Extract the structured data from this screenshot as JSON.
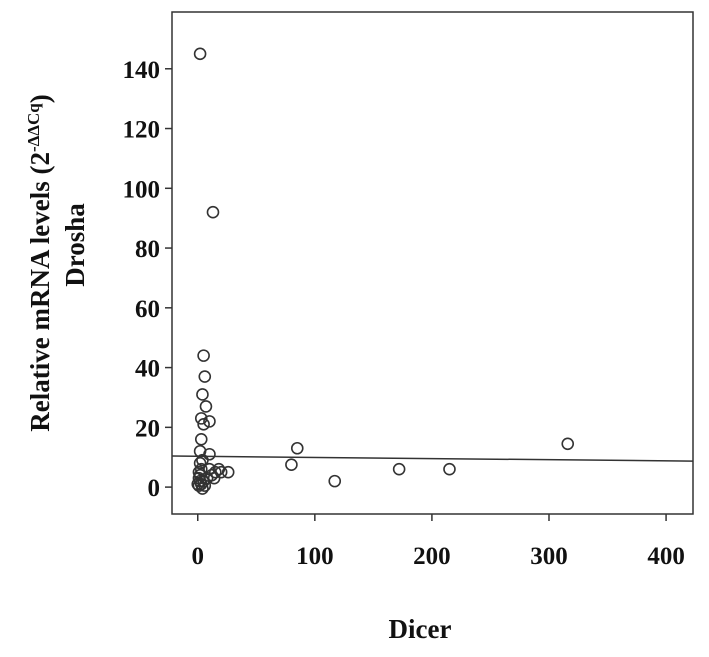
{
  "chart_data": {
    "type": "scatter",
    "x_label": "Dicer",
    "y_label": "Relative mRNA levels (2",
    "y_label_superscript": "-ΔΔCq",
    "y_label_close": ")",
    "y_label_line2": "Drosha",
    "x": [
      2,
      13,
      5,
      6,
      4,
      7,
      10,
      3,
      5,
      3,
      2,
      10,
      4,
      2,
      3,
      1,
      2,
      1,
      2,
      0,
      1,
      3,
      5,
      8,
      12,
      15,
      18,
      20,
      14,
      26,
      10,
      80,
      85,
      117,
      172,
      215,
      316,
      6,
      4
    ],
    "values": [
      145,
      92,
      44,
      37,
      31,
      27,
      22,
      23,
      21,
      16,
      12,
      11,
      9,
      8,
      6,
      5,
      4,
      3,
      2,
      1,
      0.5,
      1,
      2,
      3,
      4,
      5,
      6,
      5,
      3,
      5,
      6,
      7.5,
      13,
      2,
      6,
      6,
      14.5,
      0.5,
      -0.5
    ],
    "color": "#333333",
    "trend_line": {
      "x": [
        -22,
        423
      ],
      "values": [
        10.4,
        8.7
      ],
      "color": "#333333"
    },
    "xlim": [
      -22,
      423
    ],
    "ylim": [
      -9,
      159
    ],
    "xticks": [
      0,
      100,
      200,
      300,
      400
    ],
    "yticks": [
      0,
      20,
      40,
      60,
      80,
      100,
      120,
      140
    ]
  }
}
